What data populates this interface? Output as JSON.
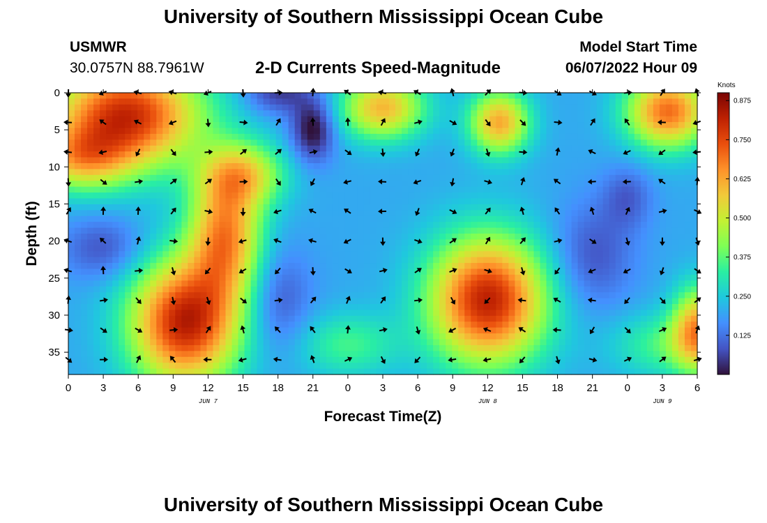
{
  "header": {
    "title": "University of Southern Mississippi Ocean Cube",
    "station": "USMWR",
    "coords": "30.0757N  88.7961W",
    "subtitle": "2-D Currents Speed-Magnitude",
    "model_start_label": "Model Start Time",
    "model_start_value": "06/07/2022 Hour 09",
    "footer_title": "University of Southern Mississippi Ocean Cube"
  },
  "colors": {
    "scale": [
      "#30123b",
      "#4454c4",
      "#4490fe",
      "#1fc8de",
      "#29efa2",
      "#7eff55",
      "#c3f133",
      "#f1ca3a",
      "#fe922a",
      "#ea4f0d",
      "#be2102",
      "#7a0403"
    ]
  },
  "chart_data": {
    "type": "heatmap",
    "title": "2-D Currents Speed-Magnitude",
    "xlabel": "Forecast Time(Z)",
    "ylabel": "Depth (ft)",
    "x_ticks": [
      "0",
      "3",
      "6",
      "9",
      "12",
      "15",
      "18",
      "21",
      "0",
      "3",
      "6",
      "9",
      "12",
      "15",
      "18",
      "21",
      "0",
      "3",
      "6"
    ],
    "x_hours": [
      0,
      54
    ],
    "y_ticks": [
      "0",
      "5",
      "10",
      "15",
      "20",
      "25",
      "30",
      "35"
    ],
    "ylim": [
      0,
      38
    ],
    "date_labels": [
      {
        "text": "JUN 7",
        "hour": 12
      },
      {
        "text": "JUN 8",
        "hour": 36
      },
      {
        "text": "JUN 9",
        "hour": 51
      }
    ],
    "colorbar": {
      "title": "Knots",
      "range": [
        0.0,
        0.9
      ],
      "ticks": [
        "0.875",
        "0.750",
        "0.625",
        "0.500",
        "0.375",
        "0.250",
        "0.125"
      ],
      "tick_values": [
        0.875,
        0.75,
        0.625,
        0.5,
        0.375,
        0.25,
        0.125
      ]
    },
    "arrow_hours": [
      0,
      3,
      6,
      9,
      12,
      15,
      18,
      21,
      24,
      27,
      30,
      33,
      36,
      39,
      42,
      45,
      48,
      51,
      54
    ],
    "arrow_depths": [
      0,
      4,
      8,
      12,
      16,
      20,
      24,
      28,
      32,
      36
    ],
    "speed_blobs": [
      {
        "hour": 5,
        "depth": 3,
        "amp": 0.6,
        "sh": 4.5,
        "sd": 5
      },
      {
        "hour": 1,
        "depth": 9,
        "amp": 0.3,
        "sh": 3,
        "sd": 3
      },
      {
        "hour": 10,
        "depth": 31,
        "amp": 0.62,
        "sh": 3.3,
        "sd": 6
      },
      {
        "hour": 13.5,
        "depth": 19,
        "amp": 0.45,
        "sh": 2.2,
        "sd": 6
      },
      {
        "hour": 15,
        "depth": 11,
        "amp": 0.3,
        "sh": 2.5,
        "sd": 3
      },
      {
        "hour": 27,
        "depth": 2,
        "amp": 0.4,
        "sh": 2.5,
        "sd": 3
      },
      {
        "hour": 37,
        "depth": 4,
        "amp": 0.42,
        "sh": 1.8,
        "sd": 3
      },
      {
        "hour": 36,
        "depth": 28,
        "amp": 0.62,
        "sh": 3.5,
        "sd": 6
      },
      {
        "hour": 51.5,
        "depth": 2.5,
        "amp": 0.5,
        "sh": 2.5,
        "sd": 3.5
      },
      {
        "hour": 54,
        "depth": 32,
        "amp": 0.42,
        "sh": 1.5,
        "sd": 4
      },
      {
        "hour": 24,
        "depth": 34,
        "amp": 0.15,
        "sh": 3,
        "sd": 3
      },
      {
        "hour": 51,
        "depth": 34,
        "amp": 0.15,
        "sh": 3,
        "sd": 3
      },
      {
        "hour": 21,
        "depth": 5,
        "amp": -0.22,
        "sh": 1.3,
        "sd": 3
      },
      {
        "hour": 18,
        "depth": 0,
        "amp": -0.15,
        "sh": 2,
        "sd": 2
      },
      {
        "hour": 18,
        "depth": 28,
        "amp": -0.12,
        "sh": 2,
        "sd": 5
      },
      {
        "hour": 45,
        "depth": 22,
        "amp": -0.12,
        "sh": 2.5,
        "sd": 5
      },
      {
        "hour": 48,
        "depth": 14,
        "amp": -0.1,
        "sh": 1.5,
        "sd": 3
      },
      {
        "hour": 3,
        "depth": 21,
        "amp": -0.12,
        "sh": 2.5,
        "sd": 3
      }
    ],
    "speed_base": 0.2
  }
}
